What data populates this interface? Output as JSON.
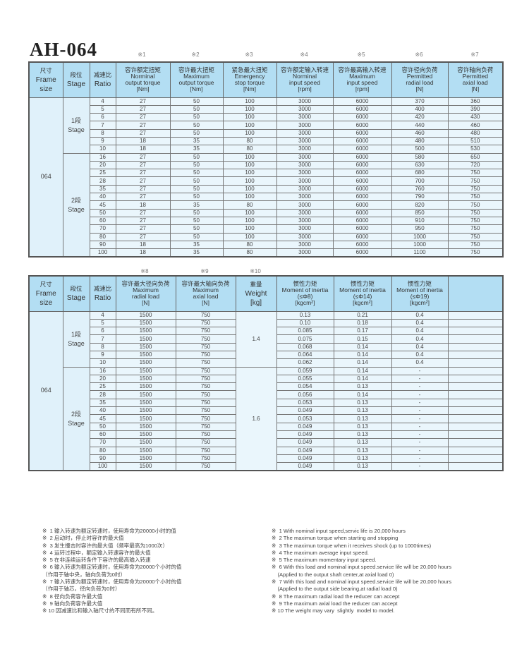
{
  "title": "AH-064",
  "table1": {
    "marks": [
      "※1",
      "※2",
      "※3",
      "※4",
      "※5",
      "※6",
      "※7"
    ],
    "headers": {
      "frame": [
        "尺寸",
        "Frame",
        "size"
      ],
      "stage": [
        "段位",
        "Stage"
      ],
      "ratio": [
        "减速比",
        "Ratio"
      ],
      "cols": [
        [
          "容许额定扭矩",
          "Norminal",
          "output torque",
          "[Nm]"
        ],
        [
          "容许最大扭矩",
          "Maximum",
          "output torque",
          "[Nm]"
        ],
        [
          "紧急最大扭矩",
          "Emergency",
          "stop torque",
          "[Nm]"
        ],
        [
          "容许额定输入转速",
          "Norminal",
          "input speed",
          "[rpm]"
        ],
        [
          "容许最高输入转速",
          "Maximum",
          "input speed",
          "[rpm]"
        ],
        [
          "容许径向负荷",
          "Permitted",
          "radial load",
          "[N]"
        ],
        [
          "容许轴向负荷",
          "Permitted",
          "axial load",
          "[N]"
        ]
      ]
    },
    "frame_size": "064",
    "stage1": [
      "1段",
      "Stage"
    ],
    "stage2": [
      "2段",
      "Stage"
    ],
    "rows_stage1": [
      [
        "4",
        "27",
        "50",
        "100",
        "3000",
        "6000",
        "370",
        "360"
      ],
      [
        "5",
        "27",
        "50",
        "100",
        "3000",
        "6000",
        "400",
        "390"
      ],
      [
        "6",
        "27",
        "50",
        "100",
        "3000",
        "6000",
        "420",
        "430"
      ],
      [
        "7",
        "27",
        "50",
        "100",
        "3000",
        "6000",
        "440",
        "460"
      ],
      [
        "8",
        "27",
        "50",
        "100",
        "3000",
        "6000",
        "460",
        "480"
      ],
      [
        "9",
        "18",
        "35",
        "80",
        "3000",
        "6000",
        "480",
        "510"
      ],
      [
        "10",
        "18",
        "35",
        "80",
        "3000",
        "6000",
        "500",
        "530"
      ]
    ],
    "rows_stage2": [
      [
        "16",
        "27",
        "50",
        "100",
        "3000",
        "6000",
        "580",
        "650"
      ],
      [
        "20",
        "27",
        "50",
        "100",
        "3000",
        "6000",
        "630",
        "720"
      ],
      [
        "25",
        "27",
        "50",
        "100",
        "3000",
        "6000",
        "680",
        "750"
      ],
      [
        "28",
        "27",
        "50",
        "100",
        "3000",
        "6000",
        "700",
        "750"
      ],
      [
        "35",
        "27",
        "50",
        "100",
        "3000",
        "6000",
        "760",
        "750"
      ],
      [
        "40",
        "27",
        "50",
        "100",
        "3000",
        "6000",
        "790",
        "750"
      ],
      [
        "45",
        "18",
        "35",
        "80",
        "3000",
        "6000",
        "820",
        "750"
      ],
      [
        "50",
        "27",
        "50",
        "100",
        "3000",
        "6000",
        "850",
        "750"
      ],
      [
        "60",
        "27",
        "50",
        "100",
        "3000",
        "6000",
        "910",
        "750"
      ],
      [
        "70",
        "27",
        "50",
        "100",
        "3000",
        "6000",
        "950",
        "750"
      ],
      [
        "80",
        "27",
        "50",
        "100",
        "3000",
        "6000",
        "1000",
        "750"
      ],
      [
        "90",
        "18",
        "35",
        "80",
        "3000",
        "6000",
        "1000",
        "750"
      ],
      [
        "100",
        "18",
        "35",
        "80",
        "3000",
        "6000",
        "1100",
        "750"
      ]
    ]
  },
  "table2": {
    "marks": [
      "※8",
      "※9",
      "※10"
    ],
    "headers": {
      "frame": [
        "尺寸",
        "Frame",
        "size"
      ],
      "stage": [
        "段位",
        "Stage"
      ],
      "ratio": [
        "减速比",
        "Ratio"
      ],
      "radial": [
        "容许最大径向负荷",
        "Maximum",
        "radial load",
        "[N]"
      ],
      "axial": [
        "容许最大轴向负荷",
        "Maximum",
        "axial load",
        "[N]"
      ],
      "weight": [
        "重量",
        "Weight",
        "[kg]"
      ],
      "inertia": [
        [
          "惯性力矩",
          "Moment of inertia",
          "(≤Φ8)",
          "[kgcm²]"
        ],
        [
          "惯性力矩",
          "Moment of inertia",
          "(≤Φ14)",
          "[kgcm²]"
        ],
        [
          "惯性力矩",
          "Moment of inertia",
          "(≤Φ19)",
          "[kgcm²]"
        ]
      ]
    },
    "frame_size": "064",
    "stage1": [
      "1段",
      "Stage"
    ],
    "stage2": [
      "2段",
      "Stage"
    ],
    "weight_stage1": "1.4",
    "weight_stage2": "1.6",
    "rows_stage1": [
      [
        "4",
        "1500",
        "750",
        "0.13",
        "0.21",
        "0.4"
      ],
      [
        "5",
        "1500",
        "750",
        "0.10",
        "0.18",
        "0.4"
      ],
      [
        "6",
        "1500",
        "750",
        "0.085",
        "0.17",
        "0.4"
      ],
      [
        "7",
        "1500",
        "750",
        "0.075",
        "0.15",
        "0.4"
      ],
      [
        "8",
        "1500",
        "750",
        "0.068",
        "0.14",
        "0.4"
      ],
      [
        "9",
        "1500",
        "750",
        "0.064",
        "0.14",
        "0.4"
      ],
      [
        "10",
        "1500",
        "750",
        "0.062",
        "0.14",
        "0.4"
      ]
    ],
    "rows_stage2": [
      [
        "16",
        "1500",
        "750",
        "0.059",
        "0.14",
        "-"
      ],
      [
        "20",
        "1500",
        "750",
        "0.055",
        "0.14",
        "-"
      ],
      [
        "25",
        "1500",
        "750",
        "0.054",
        "0.13",
        "-"
      ],
      [
        "28",
        "1500",
        "750",
        "0.056",
        "0.14",
        "-"
      ],
      [
        "35",
        "1500",
        "750",
        "0.053",
        "0.13",
        "-"
      ],
      [
        "40",
        "1500",
        "750",
        "0.049",
        "0.13",
        "-"
      ],
      [
        "45",
        "1500",
        "750",
        "0.053",
        "0.13",
        "-"
      ],
      [
        "50",
        "1500",
        "750",
        "0.049",
        "0.13",
        "-"
      ],
      [
        "60",
        "1500",
        "750",
        "0.049",
        "0.13",
        "-"
      ],
      [
        "70",
        "1500",
        "750",
        "0.049",
        "0.13",
        "-"
      ],
      [
        "80",
        "1500",
        "750",
        "0.049",
        "0.13",
        "-"
      ],
      [
        "90",
        "1500",
        "750",
        "0.049",
        "0.13",
        "-"
      ],
      [
        "100",
        "1500",
        "750",
        "0.049",
        "0.13",
        "-"
      ]
    ]
  },
  "notes_cn": [
    "※  1 输入转速为额定转速时，使用寿命为20000小时的值",
    "※  2 启动时，停止时容许的最大值",
    "※  3 发生撞击时容许的最大值（频率最高为1000次）",
    "※  4 运转过程中，额定输入转速容许的最大值",
    "※  5 在非连续运转条件下容许的最高输入转速",
    "※  6 输入转速为额定转速时，使用寿命为20000个小时的值",
    "（作用于轴中央，轴向负荷为0时）",
    "※  7 输入转速为额定转速时，使用寿命为20000个小时的值",
    "（作用于轴芯，径向负荷为0时）",
    "※  8 径向负荷容许最大值",
    "※  9 轴向负荷容许最大值",
    "※ 10 因减速比和输入轴尺寸的不同而有所不同。"
  ],
  "notes_en": [
    "※  1 With nominal input speed,servic life is 20,000 hours",
    "※  2 The maximun torque when starting and stopping",
    "※  3 The maximun torque when it receives shock (up to 1000times)",
    "※  4 The maximum average input speed.",
    "※  5 The maximum momentary input speed.",
    "※  6 With this load and nominal input speed.service life will be 20,000 hours",
    "    (Applied to the output shaft center,at axial load 0)",
    "※  7 With this load and nominal input speed.service life will be 20,000 hours",
    "    (Applied to the output side bearing,at radial load 0)",
    "※  8 The maximum radial load the reducer can accept",
    "※  9 The maximum axial load the reducer can accept",
    "※ 10 The weight may vary  slightly  model to model."
  ]
}
